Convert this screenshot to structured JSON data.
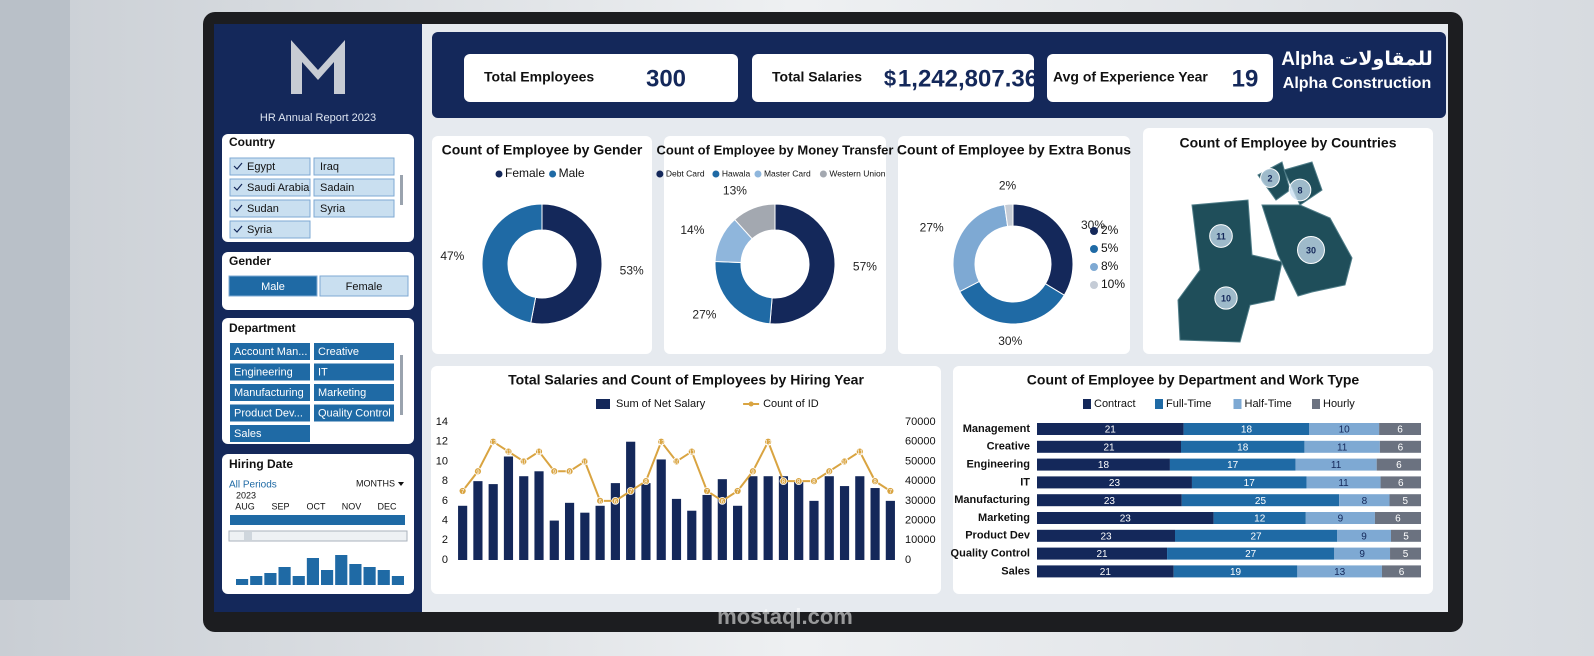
{
  "header": {
    "report_title": "HR Annual Report 2023",
    "brand": [
      "Alpha للمقاولات",
      "Alpha Construction"
    ]
  },
  "kpis": [
    {
      "label": "Total Employees",
      "value": "300"
    },
    {
      "label": "Total Salaries",
      "currency": "$",
      "value": "1,242,807.36"
    },
    {
      "label": "Avg of Experience Year",
      "value": "19"
    }
  ],
  "slicers": {
    "country": {
      "title": "Country",
      "items": [
        {
          "label": "Egypt",
          "checked": true
        },
        {
          "label": "Iraq",
          "checked": false
        },
        {
          "label": "Saudi Arabia",
          "checked": true
        },
        {
          "label": "Sadain",
          "checked": false
        },
        {
          "label": "Sudan",
          "checked": true
        },
        {
          "label": "Syria",
          "checked": false
        },
        {
          "label": "Syria",
          "checked": true
        }
      ]
    },
    "gender": {
      "title": "Gender",
      "items": [
        "Male",
        "Female"
      ],
      "selected": 0
    },
    "department": {
      "title": "Department",
      "items": [
        "Account Man...",
        "Creative",
        "Engineering",
        "IT",
        "Manufacturing",
        "Marketing",
        "Product Dev...",
        "Quality Control",
        "Sales"
      ]
    },
    "hiring_date": {
      "title": "Hiring Date",
      "period": "All Periods",
      "granularity": "MONTHS",
      "year": "2023",
      "months": [
        "AUG",
        "SEP",
        "OCT",
        "NOV",
        "DEC"
      ],
      "histogram": [
        2,
        3,
        4,
        6,
        3,
        9,
        5,
        10,
        7,
        6,
        5,
        3
      ]
    }
  },
  "chart_data": [
    {
      "type": "donut",
      "title": "Count of Employee by Gender",
      "categories": [
        "Female",
        "Male"
      ],
      "values": [
        53,
        47
      ],
      "value_labels": [
        "53%",
        "47%"
      ],
      "colors": [
        "#14285a",
        "#1f6aa5"
      ]
    },
    {
      "type": "donut",
      "title": "Count of Employee by Money Transfer",
      "categories": [
        "Debt Card",
        "Hawala",
        "Master Card",
        "Western Union"
      ],
      "values": [
        57,
        27,
        14,
        13
      ],
      "value_labels": [
        "57%",
        "27%",
        "14%",
        "13%"
      ],
      "colors": [
        "#14285a",
        "#1f6aa5",
        "#8fb6dc",
        "#a3a8b0"
      ]
    },
    {
      "type": "donut",
      "title": "Count of Employee by Extra Bonus",
      "categories": [
        "2%",
        "5%",
        "8%",
        "10%"
      ],
      "values": [
        30,
        30,
        27,
        2
      ],
      "value_labels": [
        "30%",
        "30%",
        "27%",
        "2%"
      ],
      "colors": [
        "#14285a",
        "#1f6aa5",
        "#7ea9d3",
        "#c5ccd6"
      ],
      "legend": "right"
    },
    {
      "type": "map",
      "title": "Count of Employee by Countries",
      "values": [
        2,
        8,
        11,
        30,
        10
      ],
      "color": "#1f4e5a"
    },
    {
      "type": "combo",
      "title": "Total Salaries and Count of Employees by Hiring Year",
      "series": [
        {
          "name": "Sum of Net Salary",
          "type": "bar",
          "axis": "y2",
          "color": "#14285a",
          "values": [
            27500,
            40000,
            38500,
            52500,
            42500,
            45000,
            20000,
            29000,
            24000,
            27500,
            39000,
            60000,
            39000,
            51000,
            31000,
            25000,
            33000,
            41000,
            27500,
            42500,
            42500,
            42500,
            40000,
            30000,
            42500,
            37500,
            42500,
            36500,
            30000
          ]
        },
        {
          "name": "Count of ID",
          "type": "line",
          "color": "#d9a441",
          "values": [
            7,
            9,
            12,
            11,
            10,
            11,
            9,
            9,
            10,
            6,
            6,
            7,
            8,
            12,
            10,
            11,
            7,
            6,
            7,
            9,
            12,
            8,
            8,
            8,
            9,
            10,
            11,
            8,
            7
          ]
        }
      ],
      "ylim": [
        0,
        14
      ],
      "yticks": [
        0,
        2,
        4,
        6,
        8,
        10,
        12,
        14
      ],
      "y2lim": [
        0,
        70000
      ],
      "y2ticks": [
        0,
        10000,
        20000,
        30000,
        40000,
        50000,
        60000,
        70000
      ]
    },
    {
      "type": "stacked_bar_h",
      "title": "Count of Employee by Department and Work Type",
      "stacked100": true,
      "categories": [
        "Management",
        "Creative",
        "Engineering",
        "IT",
        "Manufacturing",
        "Marketing",
        "Product Dev",
        "Quality Control",
        "Sales"
      ],
      "series": [
        {
          "name": "Contract",
          "color": "#14285a",
          "values": [
            21,
            21,
            18,
            23,
            23,
            23,
            23,
            21,
            21
          ]
        },
        {
          "name": "Full-Time",
          "color": "#1f6aa5",
          "values": [
            18,
            18,
            17,
            17,
            25,
            12,
            27,
            27,
            19
          ]
        },
        {
          "name": "Half-Time",
          "color": "#7ea9d3",
          "values": [
            10,
            11,
            11,
            11,
            8,
            9,
            9,
            9,
            13
          ]
        },
        {
          "name": "Hourly",
          "color": "#6b7280",
          "values": [
            6,
            6,
            6,
            6,
            5,
            6,
            5,
            5,
            6
          ]
        }
      ]
    }
  ],
  "watermark": "mostaql.com"
}
